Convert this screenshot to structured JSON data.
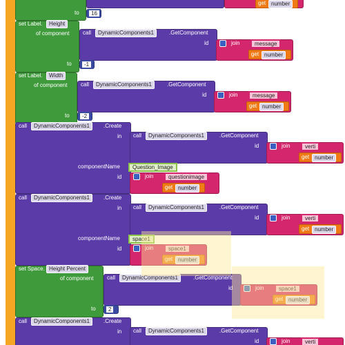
{
  "blocks": [
    {
      "to": "to",
      "value": 16,
      "get": "get",
      "variable": "number"
    },
    {
      "setter": "set Label.",
      "property": "Height",
      "of_component": "of component",
      "target": {
        "call": "call",
        "component": "DynamicComponents1",
        "method": ".GetComponent",
        "id": "id",
        "join": "join",
        "text": "message",
        "get": "get",
        "variable": "number"
      },
      "to": "to",
      "value": -1
    },
    {
      "setter": "set Label.",
      "property": "Width",
      "of_component": "of component",
      "target": {
        "call": "call",
        "component": "DynamicComponents1",
        "method": ".GetComponent",
        "id": "id",
        "join": "join",
        "text": "message",
        "get": "get",
        "variable": "number"
      },
      "to": "to",
      "value": -2
    },
    {
      "call": "call",
      "component": "DynamicComponents1",
      "method": ".Create",
      "in": "in",
      "target": {
        "call": "call",
        "component": "DynamicComponents1",
        "method": ".GetComponent",
        "id": "id",
        "join": "join",
        "text": "verti",
        "get": "get",
        "variable": "number"
      },
      "component_name_label": "componentName",
      "component_name": "Question_Image",
      "id": "id",
      "join": "join",
      "text": "questionimage",
      "get": "get",
      "variable": "number"
    },
    {
      "call": "call",
      "component": "DynamicComponents1",
      "method": ".Create",
      "in": "in",
      "target": {
        "call": "call",
        "component": "DynamicComponents1",
        "method": ".GetComponent",
        "id": "id",
        "join": "join",
        "text": "verti",
        "get": "get",
        "variable": "number"
      },
      "component_name_label": "componentName",
      "component_name": "space1",
      "id": "id",
      "join": "join",
      "text": "space1",
      "get": "get",
      "variable": "number"
    },
    {
      "setter": "set Space.",
      "property": "Height Percent",
      "of_component": "of component",
      "target": {
        "call": "call",
        "component": "DynamicComponents1",
        "method": ".GetComponent",
        "id": "id",
        "join": "join",
        "text": "space1",
        "get": "get",
        "variable": "number"
      },
      "to": "to",
      "value": 2
    },
    {
      "call": "call",
      "component": "DynamicComponents1",
      "method": ".Create",
      "in": "in",
      "target": {
        "call": "call",
        "component": "DynamicComponents1",
        "method": ".GetComponent",
        "id": "id",
        "join": "join",
        "text": "verti"
      }
    }
  ]
}
